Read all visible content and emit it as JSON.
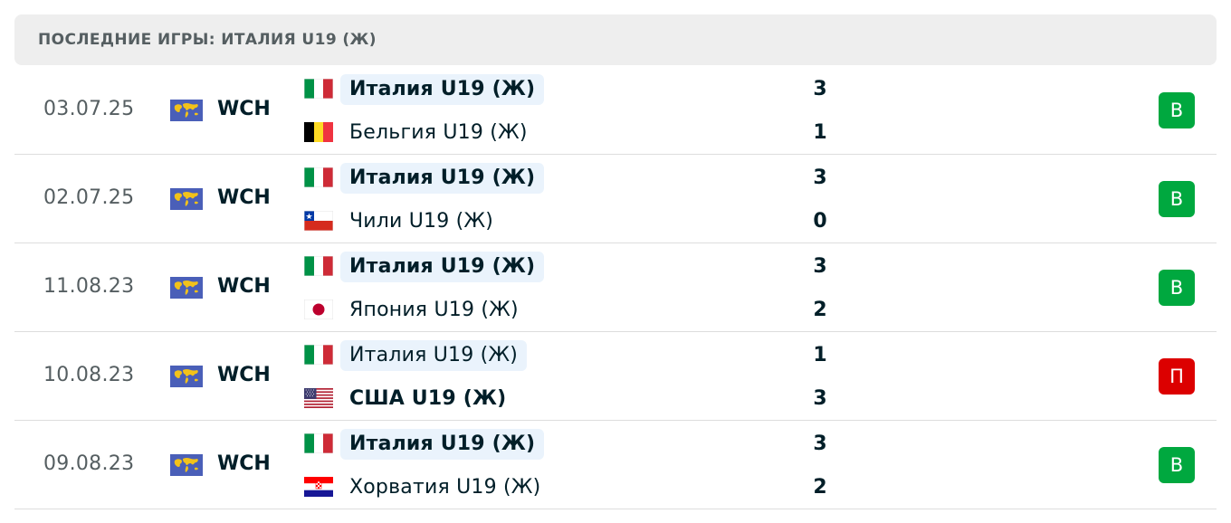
{
  "header": {
    "title": "ПОСЛЕДНИЕ ИГРЫ: ИТАЛИЯ U19 (Ж)"
  },
  "colors": {
    "win": "#00a83f",
    "loss": "#dc0000",
    "highlight": "#eaf3fc"
  },
  "matches": [
    {
      "date": "03.07.25",
      "tournament": "WCH",
      "tournament_icon": "world-map-flag-icon",
      "home": {
        "name": "Италия U19 (Ж)",
        "flag": "italy-flag-icon",
        "score": "3"
      },
      "away": {
        "name": "Бельгия U19 (Ж)",
        "flag": "belgium-flag-icon",
        "score": "1"
      },
      "result": "В"
    },
    {
      "date": "02.07.25",
      "tournament": "WCH",
      "tournament_icon": "world-map-flag-icon",
      "home": {
        "name": "Италия U19 (Ж)",
        "flag": "italy-flag-icon",
        "score": "3"
      },
      "away": {
        "name": "Чили U19 (Ж)",
        "flag": "chile-flag-icon",
        "score": "0"
      },
      "result": "В"
    },
    {
      "date": "11.08.23",
      "tournament": "WCH",
      "tournament_icon": "world-map-flag-icon",
      "home": {
        "name": "Италия U19 (Ж)",
        "flag": "italy-flag-icon",
        "score": "3"
      },
      "away": {
        "name": "Япония U19 (Ж)",
        "flag": "japan-flag-icon",
        "score": "2"
      },
      "result": "В"
    },
    {
      "date": "10.08.23",
      "tournament": "WCH",
      "tournament_icon": "world-map-flag-icon",
      "home": {
        "name": "Италия U19 (Ж)",
        "flag": "italy-flag-icon",
        "score": "1"
      },
      "away": {
        "name": "США U19 (Ж)",
        "flag": "usa-flag-icon",
        "score": "3"
      },
      "result": "П"
    },
    {
      "date": "09.08.23",
      "tournament": "WCH",
      "tournament_icon": "world-map-flag-icon",
      "home": {
        "name": "Италия U19 (Ж)",
        "flag": "italy-flag-icon",
        "score": "3"
      },
      "away": {
        "name": "Хорватия U19 (Ж)",
        "flag": "croatia-flag-icon",
        "score": "2"
      },
      "result": "В"
    }
  ]
}
